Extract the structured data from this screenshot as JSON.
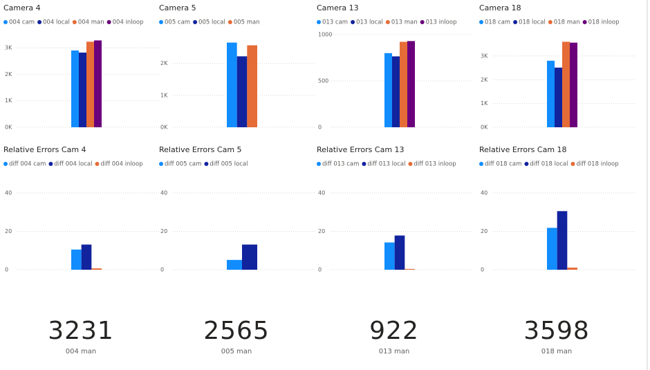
{
  "chart_data": [
    {
      "type": "bar",
      "title": "Camera 4",
      "ylim": [
        0,
        3500
      ],
      "yticks": [
        {
          "value": 0,
          "label": "0K"
        },
        {
          "value": 1000,
          "label": "1K"
        },
        {
          "value": 2000,
          "label": "2K"
        },
        {
          "value": 3000,
          "label": "3K"
        }
      ],
      "grid": true,
      "series": [
        {
          "name": "004 cam",
          "color": "#118dff",
          "values": [
            2900
          ]
        },
        {
          "name": "004 local",
          "color": "#12239e",
          "values": [
            2820
          ]
        },
        {
          "name": "004 man",
          "color": "#e66c37",
          "values": [
            3231
          ]
        },
        {
          "name": "004 inloop",
          "color": "#6b007b",
          "values": [
            3280
          ]
        }
      ]
    },
    {
      "type": "bar",
      "title": "Camera 5",
      "ylim": [
        0,
        2900
      ],
      "yticks": [
        {
          "value": 0,
          "label": "0K"
        },
        {
          "value": 1000,
          "label": "1K"
        },
        {
          "value": 2000,
          "label": "2K"
        }
      ],
      "grid": true,
      "series": [
        {
          "name": "005 cam",
          "color": "#118dff",
          "values": [
            2650
          ]
        },
        {
          "name": "005 local",
          "color": "#12239e",
          "values": [
            2220
          ]
        },
        {
          "name": "005 man",
          "color": "#e66c37",
          "values": [
            2565
          ]
        }
      ]
    },
    {
      "type": "bar",
      "title": "Camera 13",
      "ylim": [
        0,
        1000
      ],
      "yticks": [
        0,
        500,
        1000
      ],
      "grid": true,
      "series": [
        {
          "name": "013 cam",
          "color": "#118dff",
          "values": [
            800
          ]
        },
        {
          "name": "013 local",
          "color": "#12239e",
          "values": [
            765
          ]
        },
        {
          "name": "013 man",
          "color": "#e66c37",
          "values": [
            922
          ]
        },
        {
          "name": "013 inloop",
          "color": "#6b007b",
          "values": [
            930
          ]
        }
      ]
    },
    {
      "type": "bar",
      "title": "Camera 18",
      "ylim": [
        0,
        3900
      ],
      "yticks": [
        {
          "value": 0,
          "label": "0K"
        },
        {
          "value": 1000,
          "label": "1K"
        },
        {
          "value": 2000,
          "label": "2K"
        },
        {
          "value": 3000,
          "label": "3K"
        }
      ],
      "grid": true,
      "series": [
        {
          "name": "018 cam",
          "color": "#118dff",
          "values": [
            2800
          ]
        },
        {
          "name": "018 local",
          "color": "#12239e",
          "values": [
            2510
          ]
        },
        {
          "name": "018 man",
          "color": "#e66c37",
          "values": [
            3598
          ]
        },
        {
          "name": "018 inloop",
          "color": "#6b007b",
          "values": [
            3560
          ]
        }
      ]
    },
    {
      "type": "bar",
      "title": "Relative Errors Cam 4",
      "ylim": [
        0,
        45
      ],
      "yticks": [
        0,
        20,
        40
      ],
      "grid": true,
      "series": [
        {
          "name": "diff 004 cam",
          "color": "#118dff",
          "values": [
            10.5
          ]
        },
        {
          "name": "diff 004 local",
          "color": "#12239e",
          "values": [
            13.1
          ]
        },
        {
          "name": "diff 004 inloop",
          "color": "#e66c37",
          "values": [
            0.7
          ]
        }
      ]
    },
    {
      "type": "bar",
      "title": "Relative Errors Cam 5",
      "ylim": [
        0,
        45
      ],
      "yticks": [
        0,
        20,
        40
      ],
      "grid": true,
      "series": [
        {
          "name": "diff 005 cam",
          "color": "#118dff",
          "values": [
            5.1
          ]
        },
        {
          "name": "diff 005 local",
          "color": "#12239e",
          "values": [
            13.1
          ]
        }
      ]
    },
    {
      "type": "bar",
      "title": "Relative Errors Cam 13",
      "ylim": [
        0,
        45
      ],
      "yticks": [
        0,
        20,
        40
      ],
      "grid": true,
      "series": [
        {
          "name": "diff 013 cam",
          "color": "#118dff",
          "values": [
            14.2
          ]
        },
        {
          "name": "diff 013 local",
          "color": "#12239e",
          "values": [
            17.8
          ]
        },
        {
          "name": "diff 013 inloop",
          "color": "#e66c37",
          "values": [
            0.4
          ]
        }
      ]
    },
    {
      "type": "bar",
      "title": "Relative Errors Cam 18",
      "ylim": [
        0,
        45
      ],
      "yticks": [
        0,
        20,
        40
      ],
      "grid": true,
      "series": [
        {
          "name": "diff 018 cam",
          "color": "#118dff",
          "values": [
            21.8
          ]
        },
        {
          "name": "diff 018 local",
          "color": "#12239e",
          "values": [
            30.5
          ]
        },
        {
          "name": "diff 018 inloop",
          "color": "#e66c37",
          "values": [
            1.1
          ]
        }
      ]
    }
  ],
  "cards": [
    {
      "value": 3231,
      "label": "004 man"
    },
    {
      "value": 2565,
      "label": "005 man"
    },
    {
      "value": 922,
      "label": "013 man"
    },
    {
      "value": 3598,
      "label": "018 man"
    }
  ]
}
